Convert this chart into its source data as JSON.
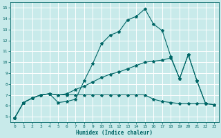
{
  "xlabel": "Humidex (Indice chaleur)",
  "bg_color": "#c8eaea",
  "line_color": "#006666",
  "grid_color": "#ffffff",
  "xlim": [
    -0.5,
    23.5
  ],
  "ylim": [
    4.5,
    15.5
  ],
  "xticks": [
    0,
    1,
    2,
    3,
    4,
    5,
    6,
    7,
    8,
    9,
    10,
    11,
    12,
    13,
    14,
    15,
    16,
    17,
    18,
    19,
    20,
    21,
    22,
    23
  ],
  "yticks": [
    5,
    6,
    7,
    8,
    9,
    10,
    11,
    12,
    13,
    14,
    15
  ],
  "s1x": [
    0,
    1,
    2,
    3,
    4,
    5,
    6,
    7,
    8,
    9,
    10,
    11,
    12,
    13,
    14,
    15,
    16,
    17,
    18,
    19,
    20,
    21,
    22
  ],
  "s1y": [
    4.9,
    6.3,
    6.7,
    7.0,
    7.1,
    6.3,
    6.4,
    6.6,
    8.3,
    9.9,
    11.7,
    12.5,
    12.8,
    13.9,
    14.2,
    14.9,
    13.5,
    12.9,
    10.5,
    8.5,
    10.7,
    8.3,
    6.2
  ],
  "s2x": [
    0,
    1,
    2,
    3,
    4,
    5,
    6,
    7,
    8,
    9,
    10,
    11,
    12,
    13,
    14,
    15,
    16,
    17,
    18,
    19,
    20,
    21,
    22,
    23
  ],
  "s2y": [
    4.9,
    6.3,
    6.7,
    7.0,
    7.1,
    7.0,
    7.1,
    7.5,
    7.8,
    8.2,
    8.6,
    8.9,
    9.1,
    9.4,
    9.7,
    10.0,
    10.1,
    10.2,
    10.4,
    8.5,
    10.7,
    8.3,
    6.2,
    6.1
  ],
  "s3x": [
    0,
    1,
    2,
    3,
    4,
    5,
    6,
    7,
    8,
    9,
    10,
    11,
    12,
    13,
    14,
    15,
    16,
    17,
    18,
    19,
    20,
    21,
    22,
    23
  ],
  "s3y": [
    4.9,
    6.3,
    6.7,
    7.0,
    7.1,
    7.0,
    7.0,
    7.0,
    7.0,
    7.0,
    7.0,
    7.0,
    7.0,
    7.0,
    7.0,
    7.0,
    6.6,
    6.4,
    6.3,
    6.2,
    6.2,
    6.2,
    6.2,
    6.1
  ]
}
